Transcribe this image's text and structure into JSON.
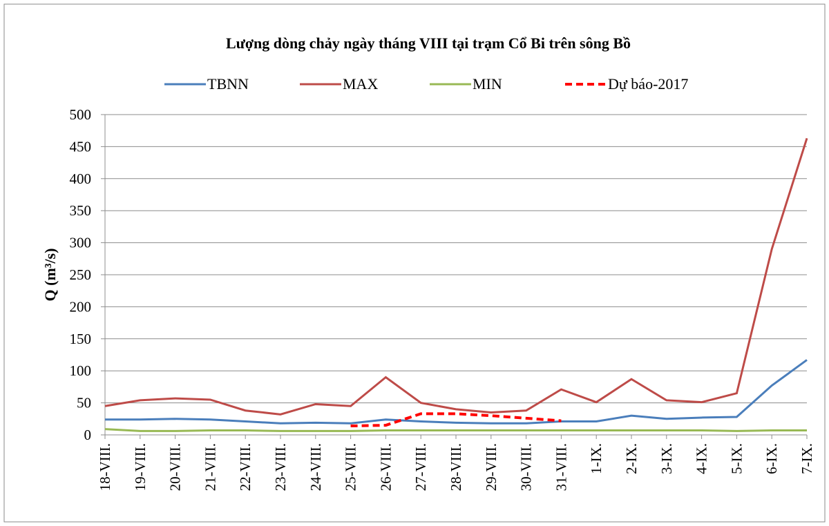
{
  "chart_data": {
    "type": "line",
    "title": "Lượng dòng chảy ngày tháng VIII tại trạm Cổ Bi trên sông Bồ",
    "y_label": "Q (m³/s)",
    "categories": [
      "18-VIII.",
      "19-VIII.",
      "20-VIII.",
      "21-VIII.",
      "22-VIII.",
      "23-VIII.",
      "24-VIII.",
      "25-VIII.",
      "26-VIII.",
      "27-VIII.",
      "28-VIII.",
      "29-VIII.",
      "30-VIII.",
      "31-VIII.",
      "1-IX.",
      "2-IX.",
      "3-IX.",
      "4-IX.",
      "5-IX.",
      "6-IX.",
      "7-IX."
    ],
    "series": [
      {
        "name": "TBNN",
        "color": "#4a7ebb",
        "dash": false,
        "values": [
          24,
          24,
          25,
          24,
          21,
          18,
          19,
          18,
          24,
          21,
          19,
          18,
          18,
          21,
          21,
          30,
          25,
          27,
          28,
          77,
          117
        ]
      },
      {
        "name": "MAX",
        "color": "#be4b48",
        "dash": false,
        "values": [
          45,
          54,
          57,
          55,
          38,
          32,
          48,
          45,
          90,
          50,
          40,
          35,
          38,
          71,
          51,
          87,
          54,
          51,
          65,
          290,
          463
        ]
      },
      {
        "name": "MIN",
        "color": "#98b954",
        "dash": false,
        "values": [
          9,
          6,
          6,
          7,
          7,
          6,
          6,
          6,
          7,
          7,
          7,
          7,
          7,
          7,
          7,
          7,
          7,
          7,
          6,
          7,
          7
        ]
      },
      {
        "name": "Dự báo-2017",
        "color": "#ff0000",
        "dash": true,
        "values": [
          null,
          null,
          null,
          null,
          null,
          null,
          null,
          14,
          15,
          33,
          33,
          30,
          26,
          22,
          null,
          null,
          null,
          null,
          null,
          null,
          null
        ]
      }
    ],
    "ylim": [
      0,
      500
    ],
    "yticks": [
      0,
      50,
      100,
      150,
      200,
      250,
      300,
      350,
      400,
      450,
      500
    ],
    "grid": true,
    "legend": "top"
  }
}
